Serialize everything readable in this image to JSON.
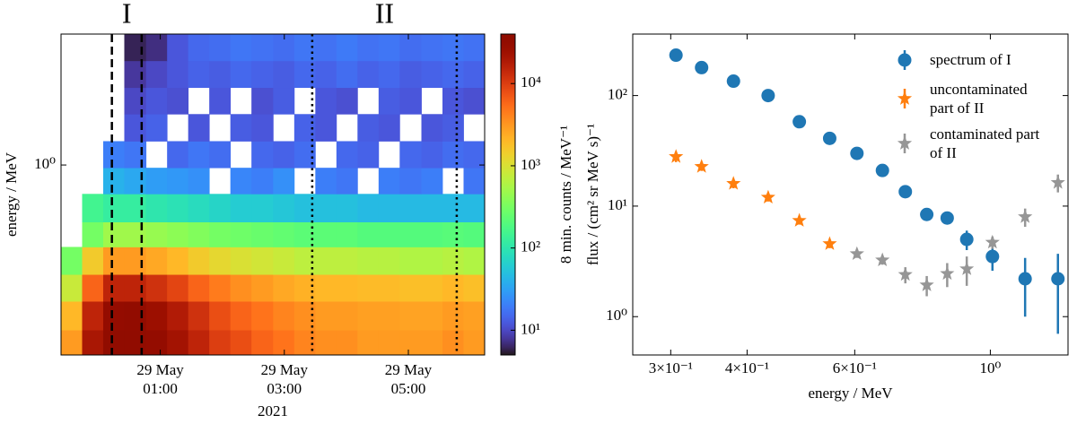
{
  "chart_data": [
    {
      "type": "heatmap",
      "x_offset_label": "2021",
      "y_label": "energy / MeV",
      "colorbar_label": "8 min. counts / MeV⁻¹",
      "colormap": "turbo",
      "y_scale": "log",
      "color_scale": "log",
      "xlim": [
        -0.6,
        6.23
      ],
      "xticks": [
        {
          "value": 1,
          "label": "29 May\n01:00"
        },
        {
          "value": 3,
          "label": "29 May\n03:00"
        },
        {
          "value": 5,
          "label": "29 May\n05:00"
        }
      ],
      "ylim": [
        0.25,
        2.6
      ],
      "yticks": [
        {
          "value": 1,
          "label": "10⁰"
        }
      ],
      "clim": [
        5,
        40000
      ],
      "cticks": [
        {
          "value": 10,
          "label": "10¹"
        },
        {
          "value": 100,
          "label": "10²"
        },
        {
          "value": 1000,
          "label": "10³"
        },
        {
          "value": 10000,
          "label": "10⁴"
        }
      ],
      "markers": [
        {
          "label": "I",
          "start": 0.22,
          "end": 0.7,
          "style": "dashed"
        },
        {
          "label": "II",
          "start": 3.45,
          "end": 5.78,
          "style": "dotted"
        }
      ],
      "x_bins": [
        -0.6,
        -0.26,
        0.08,
        0.42,
        0.77,
        1.11,
        1.45,
        1.79,
        2.13,
        2.47,
        2.82,
        3.16,
        3.5,
        3.84,
        4.18,
        4.52,
        4.86,
        5.21,
        5.55,
        5.89,
        6.23
      ],
      "y_bins": [
        0.25,
        0.3,
        0.37,
        0.45,
        0.55,
        0.66,
        0.81,
        0.98,
        1.19,
        1.45,
        1.76,
        2.14,
        2.6
      ],
      "z": [
        [
          3000,
          20000,
          35000,
          35000,
          30000,
          22000,
          15000,
          10000,
          8000,
          6000,
          5000,
          4000,
          3500,
          3500,
          3000,
          3000,
          3000,
          3000,
          3500,
          3000
        ],
        [
          2000,
          15000,
          30000,
          32000,
          25000,
          18000,
          12000,
          8000,
          6000,
          5000,
          4000,
          3500,
          3000,
          3000,
          2800,
          2800,
          2700,
          2700,
          3000,
          2800
        ],
        [
          800,
          6000,
          15000,
          15000,
          12000,
          9000,
          6000,
          4500,
          3500,
          3000,
          2500,
          2200,
          2000,
          2000,
          1900,
          1900,
          1800,
          1800,
          2000,
          1800
        ],
        [
          300,
          1500,
          3000,
          3000,
          2500,
          2000,
          1500,
          1200,
          1000,
          900,
          800,
          700,
          700,
          700,
          650,
          650,
          600,
          600,
          650,
          600
        ],
        [
          null,
          300,
          500,
          500,
          450,
          400,
          350,
          300,
          280,
          260,
          240,
          220,
          220,
          220,
          200,
          200,
          200,
          200,
          210,
          200
        ],
        [
          null,
          150,
          120,
          120,
          100,
          90,
          80,
          70,
          60,
          60,
          55,
          50,
          50,
          50,
          45,
          45,
          45,
          45,
          45,
          45
        ],
        [
          null,
          null,
          40,
          35,
          30,
          28,
          25,
          null,
          22,
          20,
          25,
          null,
          20,
          18,
          null,
          20,
          18,
          20,
          null,
          18
        ],
        [
          null,
          null,
          20,
          18,
          null,
          15,
          18,
          16,
          null,
          15,
          14,
          16,
          null,
          15,
          14,
          null,
          15,
          14,
          16,
          15
        ],
        [
          null,
          null,
          null,
          12,
          14,
          null,
          12,
          null,
          13,
          12,
          null,
          14,
          12,
          null,
          13,
          12,
          null,
          12,
          13,
          null
        ],
        [
          null,
          null,
          null,
          10,
          12,
          11,
          null,
          12,
          null,
          11,
          13,
          null,
          12,
          11,
          null,
          13,
          12,
          null,
          12,
          11
        ],
        [
          null,
          null,
          null,
          8,
          10,
          12,
          14,
          13,
          15,
          14,
          13,
          15,
          14,
          16,
          14,
          15,
          13,
          14,
          15,
          14
        ],
        [
          null,
          null,
          null,
          6,
          7,
          12,
          15,
          16,
          18,
          17,
          16,
          18,
          17,
          19,
          17,
          18,
          16,
          17,
          18,
          17
        ]
      ]
    },
    {
      "type": "scatter",
      "x_label": "energy / MeV",
      "y_label": "flux / (cm² sr MeV s)⁻¹",
      "x_scale": "log",
      "y_scale": "log",
      "xlim": [
        0.26,
        1.34
      ],
      "xticks": [
        {
          "value": 0.3,
          "label": "3×10⁻¹"
        },
        {
          "value": 0.4,
          "label": "4×10⁻¹"
        },
        {
          "value": 0.6,
          "label": "6×10⁻¹"
        },
        {
          "value": 1,
          "label": "10⁰"
        }
      ],
      "ylim": [
        0.45,
        360
      ],
      "yticks": [
        {
          "value": 1,
          "label": "10⁰"
        },
        {
          "value": 10,
          "label": "10¹"
        },
        {
          "value": 100,
          "label": "10²"
        }
      ],
      "legend": "upper right",
      "series": [
        {
          "name": "spectrum of I",
          "color": "#1f77b4",
          "marker": "circle",
          "x": [
            0.306,
            0.337,
            0.38,
            0.433,
            0.487,
            0.546,
            0.605,
            0.666,
            0.726,
            0.787,
            0.85,
            0.915,
            1.008,
            1.14,
            1.29
          ],
          "values": [
            232,
            179,
            135,
            100,
            58,
            41,
            30,
            21,
            13.5,
            8.4,
            7.8,
            5.0,
            3.5,
            2.2,
            2.2
          ],
          "errors": [
            15,
            10,
            7,
            5,
            3,
            2,
            1.5,
            1,
            0.8,
            0.6,
            0.8,
            1.0,
            0.9,
            1.2,
            1.5
          ]
        },
        {
          "name": "uncontaminated part of II",
          "color": "#ff7f0e",
          "marker": "star",
          "x": [
            0.306,
            0.337,
            0.38,
            0.433,
            0.487,
            0.546
          ],
          "values": [
            28,
            22.8,
            16,
            12,
            7.4,
            4.56
          ],
          "errors": [
            3,
            2,
            1.5,
            1,
            0.6,
            0.4
          ]
        },
        {
          "name": "contaminated part of II",
          "color": "#969696",
          "marker": "star",
          "x": [
            0.605,
            0.666,
            0.726,
            0.787,
            0.85,
            0.915,
            1.008,
            1.14,
            1.29
          ],
          "values": [
            3.7,
            3.25,
            2.4,
            1.93,
            2.45,
            2.7,
            4.7,
            8.0,
            16.3
          ],
          "errors": [
            0.3,
            0.3,
            0.4,
            0.4,
            0.6,
            0.8,
            0.6,
            1.5,
            3
          ]
        }
      ]
    }
  ]
}
